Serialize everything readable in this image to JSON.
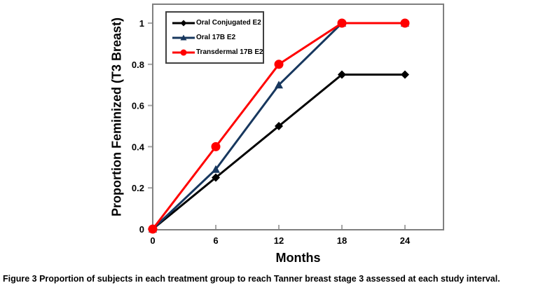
{
  "figure": {
    "caption_label": "Figure 3",
    "caption_text": " Proportion of subjects in each treatment group to reach Tanner breast stage 3 assessed at each study interval."
  },
  "chart_data": {
    "type": "line",
    "x": [
      0,
      6,
      12,
      18,
      24
    ],
    "x_ticks": [
      0,
      6,
      12,
      18,
      24
    ],
    "y_ticks": [
      0,
      0.2,
      0.4,
      0.6,
      0.8,
      1
    ],
    "xlabel": "Months",
    "ylabel": "Proportion Feminized (T3 Breast)",
    "xlim": [
      0,
      28
    ],
    "ylim": [
      0,
      1.1
    ],
    "grid": false,
    "legend_position": "top-left-inside",
    "colors": {
      "plot_border": "#7f7f7f",
      "tick_mark": "#a6a6a6",
      "legend_border": "#404040"
    },
    "series": [
      {
        "name": "Oral Conjugated E2",
        "color": "#000000",
        "marker": "diamond",
        "values": [
          0,
          0.25,
          0.5,
          0.75,
          0.75
        ]
      },
      {
        "name": "Oral 17B E2",
        "color": "#17375E",
        "marker": "triangle",
        "values": [
          0,
          0.29,
          0.7,
          1,
          1
        ]
      },
      {
        "name": "Transdermal 17B E2",
        "color": "#FF0000",
        "marker": "circle",
        "values": [
          0,
          0.4,
          0.8,
          1,
          1
        ]
      }
    ]
  }
}
